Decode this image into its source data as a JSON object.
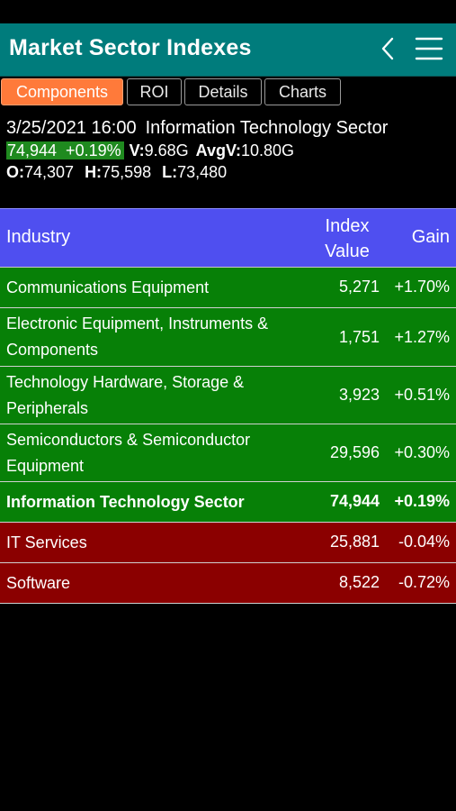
{
  "header": {
    "title": "Market Sector Indexes"
  },
  "icons": {
    "back": "chevron-left-icon",
    "menu": "hamburger-menu-icon"
  },
  "colors": {
    "header_bg": "#007c7c",
    "tab_active": "#ff7a3a",
    "table_header": "#4f4ff0",
    "gain_row": "#078007",
    "loss_row": "#8b0000"
  },
  "tabs": [
    {
      "label": "Components",
      "active": true
    },
    {
      "label": "ROI",
      "active": false
    },
    {
      "label": "Details",
      "active": false
    },
    {
      "label": "Charts",
      "active": false
    }
  ],
  "summary": {
    "datetime": "3/25/2021 16:00",
    "sector": "Information Technology Sector",
    "last_change": "74,944  +0.19%",
    "volume_label": "V:",
    "volume": "9.68G",
    "avg_volume_label": "AvgV:",
    "avg_volume": "10.80G",
    "open_label": "O:",
    "open": "74,307",
    "high_label": "H:",
    "high": "75,598",
    "low_label": "L:",
    "low": "73,480"
  },
  "table": {
    "headers": {
      "industry": "Industry",
      "value_line1": "Index",
      "value_line2": "Value",
      "gain": "Gain"
    },
    "rows": [
      {
        "industry": "Communications Equipment",
        "value": "5,271",
        "gain": "+1.70%",
        "direction": "up",
        "bold": false
      },
      {
        "industry": "Electronic Equipment, Instruments & Components",
        "value": "1,751",
        "gain": "+1.27%",
        "direction": "up",
        "bold": false
      },
      {
        "industry": "Technology Hardware, Storage & Peripherals",
        "value": "3,923",
        "gain": "+0.51%",
        "direction": "up",
        "bold": false
      },
      {
        "industry": "Semiconductors & Semiconductor Equipment",
        "value": "29,596",
        "gain": "+0.30%",
        "direction": "up",
        "bold": false
      },
      {
        "industry": "Information Technology Sector",
        "value": "74,944",
        "gain": "+0.19%",
        "direction": "up",
        "bold": true
      },
      {
        "industry": "IT Services",
        "value": "25,881",
        "gain": "-0.04%",
        "direction": "down",
        "bold": false
      },
      {
        "industry": "Software",
        "value": "8,522",
        "gain": "-0.72%",
        "direction": "down",
        "bold": false
      }
    ]
  }
}
